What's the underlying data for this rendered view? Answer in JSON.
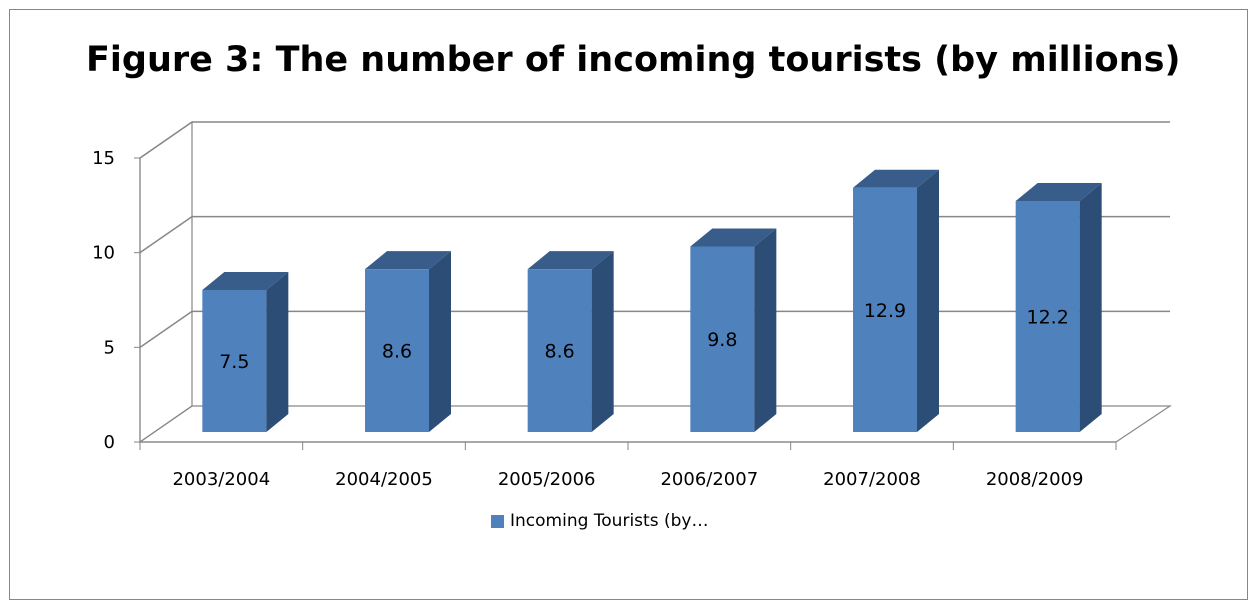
{
  "chart_data": {
    "type": "bar",
    "title": "Figure 3: The number of incoming tourists (by millions)",
    "categories": [
      "2003/2004",
      "2004/2005",
      "2005/2006",
      "2006/2007",
      "2007/2008",
      "2008/2009"
    ],
    "series": [
      {
        "name": "Incoming Tourists (by…",
        "values": [
          7.5,
          8.6,
          8.6,
          9.8,
          12.9,
          12.2
        ]
      }
    ],
    "y_ticks": [
      "0",
      "5",
      "10",
      "15"
    ],
    "ylim": [
      0,
      15
    ],
    "grid": true,
    "legend_position": "bottom",
    "style": "3d-column",
    "colors": {
      "bar_front": "#4f81bd",
      "bar_side": "#2c4d75",
      "bar_top": "#385d8a",
      "grid": "#878787"
    }
  }
}
